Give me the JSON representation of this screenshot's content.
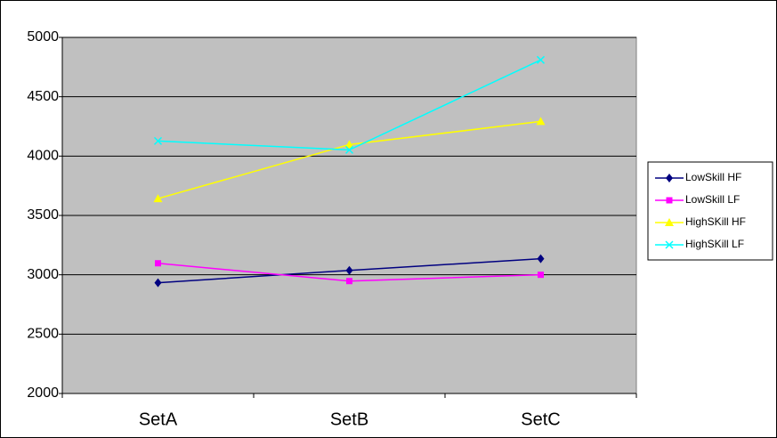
{
  "chart_data": {
    "type": "line",
    "categories": [
      "SetA",
      "SetB",
      "SetC"
    ],
    "series": [
      {
        "name": "LowSkill HF",
        "color": "#000080",
        "values": [
          2933,
          3037,
          3135
        ]
      },
      {
        "name": "LowSkill LF",
        "color": "#ff00ff",
        "values": [
          3097,
          2947,
          3000
        ]
      },
      {
        "name": "HighSKill HF",
        "color": "#ffff00",
        "values": [
          3642,
          4097,
          4292
        ]
      },
      {
        "name": "HighSKill LF",
        "color": "#00ffff",
        "values": [
          4127,
          4052,
          4810
        ]
      }
    ],
    "ylim": [
      2000,
      5000
    ],
    "yticks": [
      2000,
      2500,
      3000,
      3500,
      4000,
      4500,
      5000
    ],
    "grid": true,
    "legend": "right"
  }
}
